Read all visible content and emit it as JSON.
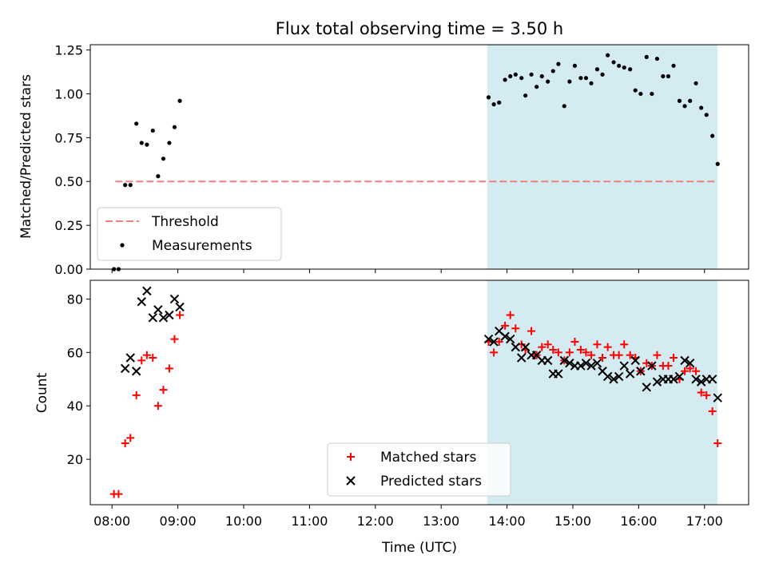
{
  "chart_data": {
    "type": "scatter",
    "title": "Flux total observing time = 3.50 h",
    "xlabel": "Time (UTC)",
    "x_ticks": [
      "08:00",
      "09:00",
      "10:00",
      "11:00",
      "12:00",
      "13:00",
      "14:00",
      "15:00",
      "16:00",
      "17:00"
    ],
    "x_range_hours": [
      7.67,
      17.67
    ],
    "shaded_region_hours": [
      13.7,
      17.2
    ],
    "shade_color": "#d4ebf1",
    "top": {
      "ylabel": "Matched/Predicted stars",
      "ylim": [
        0,
        1.28
      ],
      "y_ticks": [
        "0.00",
        "0.25",
        "0.50",
        "0.75",
        "1.00",
        "1.25"
      ],
      "threshold": {
        "name": "Threshold",
        "value": 0.5,
        "x_range": [
          8.05,
          17.2
        ],
        "color": "#f08080"
      },
      "measurements": {
        "name": "Measurements",
        "color": "#000000",
        "points": [
          [
            8.03,
            0.0
          ],
          [
            8.1,
            0.0
          ],
          [
            8.2,
            0.48
          ],
          [
            8.28,
            0.48
          ],
          [
            8.37,
            0.83
          ],
          [
            8.45,
            0.72
          ],
          [
            8.53,
            0.71
          ],
          [
            8.62,
            0.79
          ],
          [
            8.7,
            0.53
          ],
          [
            8.78,
            0.63
          ],
          [
            8.87,
            0.72
          ],
          [
            8.95,
            0.81
          ],
          [
            9.03,
            0.96
          ],
          [
            13.72,
            0.98
          ],
          [
            13.8,
            0.94
          ],
          [
            13.88,
            0.95
          ],
          [
            13.97,
            1.08
          ],
          [
            14.05,
            1.1
          ],
          [
            14.13,
            1.11
          ],
          [
            14.22,
            1.09
          ],
          [
            14.28,
            0.99
          ],
          [
            14.37,
            1.11
          ],
          [
            14.45,
            1.04
          ],
          [
            14.53,
            1.1
          ],
          [
            14.62,
            1.07
          ],
          [
            14.7,
            1.13
          ],
          [
            14.78,
            1.17
          ],
          [
            14.87,
            0.93
          ],
          [
            14.95,
            1.07
          ],
          [
            15.03,
            1.16
          ],
          [
            15.12,
            1.09
          ],
          [
            15.2,
            1.09
          ],
          [
            15.28,
            1.06
          ],
          [
            15.37,
            1.14
          ],
          [
            15.45,
            1.11
          ],
          [
            15.53,
            1.22
          ],
          [
            15.62,
            1.18
          ],
          [
            15.7,
            1.16
          ],
          [
            15.78,
            1.15
          ],
          [
            15.87,
            1.14
          ],
          [
            15.95,
            1.02
          ],
          [
            16.03,
            1.0
          ],
          [
            16.12,
            1.21
          ],
          [
            16.2,
            1.0
          ],
          [
            16.28,
            1.2
          ],
          [
            16.37,
            1.1
          ],
          [
            16.45,
            1.1
          ],
          [
            16.53,
            1.16
          ],
          [
            16.62,
            0.96
          ],
          [
            16.7,
            0.93
          ],
          [
            16.78,
            0.96
          ],
          [
            16.87,
            1.06
          ],
          [
            16.95,
            0.92
          ],
          [
            17.03,
            0.88
          ],
          [
            17.12,
            0.76
          ],
          [
            17.2,
            0.6
          ]
        ]
      }
    },
    "bottom": {
      "ylabel": "Count",
      "ylim": [
        3,
        87
      ],
      "y_ticks": [
        "20",
        "40",
        "60",
        "80"
      ],
      "series": [
        {
          "name": "Matched stars",
          "marker": "plus",
          "color": "#ff0000",
          "points": [
            [
              8.03,
              7
            ],
            [
              8.1,
              7
            ],
            [
              8.2,
              26
            ],
            [
              8.28,
              28
            ],
            [
              8.37,
              44
            ],
            [
              8.45,
              57
            ],
            [
              8.53,
              59
            ],
            [
              8.62,
              58
            ],
            [
              8.7,
              40
            ],
            [
              8.78,
              46
            ],
            [
              8.87,
              54
            ],
            [
              8.95,
              65
            ],
            [
              9.03,
              74
            ],
            [
              13.72,
              64
            ],
            [
              13.8,
              60
            ],
            [
              13.88,
              64
            ],
            [
              13.97,
              70
            ],
            [
              14.05,
              74
            ],
            [
              14.13,
              69
            ],
            [
              14.22,
              63
            ],
            [
              14.28,
              61
            ],
            [
              14.37,
              68
            ],
            [
              14.45,
              59
            ],
            [
              14.53,
              62
            ],
            [
              14.62,
              63
            ],
            [
              14.7,
              61
            ],
            [
              14.78,
              60
            ],
            [
              14.87,
              57
            ],
            [
              14.95,
              60
            ],
            [
              15.03,
              64
            ],
            [
              15.12,
              61
            ],
            [
              15.2,
              60
            ],
            [
              15.28,
              59
            ],
            [
              15.37,
              63
            ],
            [
              15.45,
              58
            ],
            [
              15.53,
              62
            ],
            [
              15.62,
              59
            ],
            [
              15.7,
              59
            ],
            [
              15.78,
              63
            ],
            [
              15.87,
              59
            ],
            [
              15.95,
              58
            ],
            [
              16.03,
              53
            ],
            [
              16.12,
              56
            ],
            [
              16.2,
              55
            ],
            [
              16.28,
              59
            ],
            [
              16.37,
              55
            ],
            [
              16.45,
              55
            ],
            [
              16.53,
              58
            ],
            [
              16.62,
              50
            ],
            [
              16.7,
              53
            ],
            [
              16.78,
              54
            ],
            [
              16.87,
              53
            ],
            [
              16.95,
              45
            ],
            [
              17.03,
              44
            ],
            [
              17.12,
              38
            ],
            [
              17.2,
              26
            ]
          ]
        },
        {
          "name": "Predicted stars",
          "marker": "x",
          "color": "#000000",
          "points": [
            [
              8.2,
              54
            ],
            [
              8.28,
              58
            ],
            [
              8.37,
              53
            ],
            [
              8.45,
              79
            ],
            [
              8.53,
              83
            ],
            [
              8.62,
              73
            ],
            [
              8.7,
              76
            ],
            [
              8.78,
              73
            ],
            [
              8.87,
              74
            ],
            [
              8.95,
              80
            ],
            [
              9.03,
              77
            ],
            [
              13.72,
              65
            ],
            [
              13.8,
              64
            ],
            [
              13.88,
              68
            ],
            [
              13.97,
              66
            ],
            [
              14.05,
              65
            ],
            [
              14.13,
              62
            ],
            [
              14.22,
              58
            ],
            [
              14.28,
              62
            ],
            [
              14.37,
              59
            ],
            [
              14.45,
              59
            ],
            [
              14.53,
              57
            ],
            [
              14.62,
              57
            ],
            [
              14.7,
              52
            ],
            [
              14.78,
              52
            ],
            [
              14.87,
              57
            ],
            [
              14.95,
              56
            ],
            [
              15.03,
              55
            ],
            [
              15.12,
              55
            ],
            [
              15.2,
              56
            ],
            [
              15.28,
              55
            ],
            [
              15.37,
              56
            ],
            [
              15.45,
              53
            ],
            [
              15.53,
              51
            ],
            [
              15.62,
              50
            ],
            [
              15.7,
              51
            ],
            [
              15.78,
              55
            ],
            [
              15.87,
              52
            ],
            [
              15.95,
              57
            ],
            [
              16.03,
              53
            ],
            [
              16.12,
              47
            ],
            [
              16.2,
              55
            ],
            [
              16.28,
              49
            ],
            [
              16.37,
              50
            ],
            [
              16.45,
              50
            ],
            [
              16.53,
              50
            ],
            [
              16.62,
              51
            ],
            [
              16.7,
              57
            ],
            [
              16.78,
              56
            ],
            [
              16.87,
              50
            ],
            [
              16.95,
              49
            ],
            [
              17.03,
              50
            ],
            [
              17.12,
              50
            ],
            [
              17.2,
              43
            ]
          ]
        }
      ]
    }
  }
}
